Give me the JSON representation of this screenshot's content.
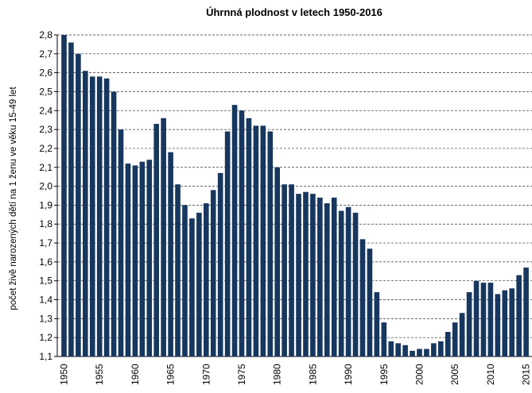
{
  "chart_data": {
    "type": "bar",
    "title": "Úhrnná plodnost  v letech 1950-2016",
    "y_label": "počet živě narozených dětí na 1 ženu ve věku 15-49 let",
    "categories": [
      "1950",
      null,
      null,
      null,
      null,
      "1955",
      null,
      null,
      null,
      null,
      "1960",
      null,
      null,
      null,
      null,
      "1965",
      null,
      null,
      null,
      null,
      "1970",
      null,
      null,
      null,
      null,
      "1975",
      null,
      null,
      null,
      null,
      "1980",
      null,
      null,
      null,
      null,
      "1985",
      null,
      null,
      null,
      null,
      "1990",
      null,
      null,
      null,
      null,
      "1995",
      null,
      null,
      null,
      null,
      "2000",
      null,
      null,
      null,
      null,
      "2005",
      null,
      null,
      null,
      null,
      "2010",
      null,
      null,
      null,
      null,
      "2015"
    ],
    "values": [
      2.8,
      2.76,
      2.7,
      2.61,
      2.58,
      2.58,
      2.57,
      2.5,
      2.3,
      2.12,
      2.11,
      2.13,
      2.14,
      2.33,
      2.36,
      2.18,
      2.01,
      1.9,
      1.83,
      1.86,
      1.91,
      1.98,
      2.07,
      2.29,
      2.43,
      2.4,
      2.36,
      2.32,
      2.32,
      2.29,
      2.1,
      2.01,
      2.01,
      1.96,
      1.97,
      1.96,
      1.94,
      1.91,
      1.94,
      1.87,
      1.89,
      1.86,
      1.72,
      1.67,
      1.44,
      1.28,
      1.18,
      1.17,
      1.16,
      1.13,
      1.14,
      1.14,
      1.17,
      1.18,
      1.23,
      1.28,
      1.33,
      1.44,
      1.5,
      1.49,
      1.49,
      1.43,
      1.45,
      1.46,
      1.53,
      1.57
    ],
    "color": "#17375e",
    "ylim": [
      1.1,
      2.8
    ],
    "yticks": [
      {
        "value": 1.1,
        "label": "1,1"
      },
      {
        "value": 1.2,
        "label": "1,2"
      },
      {
        "value": 1.3,
        "label": "1,3"
      },
      {
        "value": 1.4,
        "label": "1,4"
      },
      {
        "value": 1.5,
        "label": "1,5"
      },
      {
        "value": 1.6,
        "label": "1,6"
      },
      {
        "value": 1.7,
        "label": "1,7"
      },
      {
        "value": 1.8,
        "label": "1,8"
      },
      {
        "value": 1.9,
        "label": "1,9"
      },
      {
        "value": 2.0,
        "label": "2,0"
      },
      {
        "value": 2.1,
        "label": "2,1"
      },
      {
        "value": 2.2,
        "label": "2,2"
      },
      {
        "value": 2.3,
        "label": "2,3"
      },
      {
        "value": 2.4,
        "label": "2,4"
      },
      {
        "value": 2.5,
        "label": "2,5"
      },
      {
        "value": 2.6,
        "label": "2,6"
      },
      {
        "value": 2.7,
        "label": "2,7"
      },
      {
        "value": 2.8,
        "label": "2,8"
      }
    ],
    "grid": true
  }
}
